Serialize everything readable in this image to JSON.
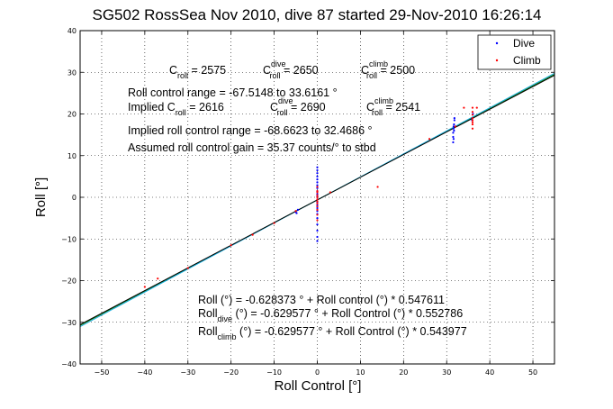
{
  "chart_data": {
    "type": "scatter",
    "title": "SG502 RossSea Nov 2010, dive 87 started 29-Nov-2010 16:26:14",
    "xlabel": "Roll Control [°]",
    "ylabel": "Roll [°]",
    "xlim": [
      -55,
      55
    ],
    "ylim": [
      -40,
      40
    ],
    "xticks": [
      -50,
      -40,
      -30,
      -20,
      -10,
      0,
      10,
      20,
      30,
      40,
      50
    ],
    "yticks": [
      -40,
      -30,
      -20,
      -10,
      0,
      10,
      20,
      30,
      40
    ],
    "grid": true,
    "legend_position": "top-right",
    "legend": [
      "Dive",
      "Climb"
    ],
    "colors": {
      "dive": "#0000ff",
      "climb": "#ff0000",
      "fit_all": "#0a7d0a",
      "fit_dive": "#1aaee0",
      "fit_climb": "#000000"
    },
    "series": [
      {
        "name": "Dive",
        "x": [
          0,
          0,
          0,
          0,
          0,
          0,
          0,
          0,
          0,
          0,
          0,
          0,
          0,
          0,
          0,
          0,
          0,
          0,
          0,
          0,
          0,
          0,
          31.5,
          31.6,
          31.7,
          31.8,
          31.6,
          31.5,
          31.7,
          31.6,
          31.5,
          31.8,
          36,
          35.9,
          36.1,
          -5,
          -4.5,
          -4.8
        ],
        "y": [
          7.2,
          6.5,
          5.8,
          5.0,
          4.3,
          3.6,
          2.9,
          2.2,
          1.5,
          0.8,
          0.2,
          -0.5,
          -1.2,
          -1.9,
          -2.6,
          -3.3,
          -4.0,
          -5.0,
          -6.5,
          -8.0,
          -9.5,
          -10.5,
          15.5,
          16.5,
          17.5,
          18.5,
          14,
          13.2,
          16,
          17,
          14.5,
          19,
          19,
          18.5,
          20,
          -3.5,
          -3,
          -3.8
        ]
      },
      {
        "name": "Climb",
        "x": [
          0,
          0,
          0,
          0,
          0,
          0,
          0,
          0,
          0,
          0,
          0,
          0,
          36,
          36,
          36,
          36,
          36,
          36,
          36,
          36,
          34,
          37,
          -40,
          -37,
          -30,
          -20,
          -10,
          -5,
          3,
          14,
          26,
          32,
          -15
        ],
        "y": [
          2.5,
          1.5,
          0.5,
          0,
          -0.5,
          -1,
          -1.5,
          -2.2,
          -3,
          -4.2,
          -5.5,
          1.2,
          16.5,
          17.5,
          18,
          18.5,
          19,
          19.8,
          20.5,
          21.5,
          21.5,
          21.5,
          -21.5,
          -19.5,
          -17,
          -11.5,
          -6.2,
          -3.3,
          1.2,
          2.5,
          14,
          17,
          -9
        ]
      }
    ],
    "annotations": {
      "c_row": {
        "c": "C",
        "roll": "roll",
        "c_val": " = 2575",
        "dive_c": "C",
        "dive_sup": "dive",
        "dive_sub": "roll",
        "dive_val": " = 2650",
        "climb_c": "C",
        "climb_sup": "climb",
        "climb_sub": "roll",
        "climb_val": " = 2500"
      },
      "range_line": "Roll control range = -67.5148 to 33.6161 °",
      "implied_row": {
        "implied": "Implied C",
        "roll": "roll",
        "implied_val": " = 2616",
        "dive_c": "C",
        "dive_sup": "dive",
        "dive_sub": "roll",
        "dive_val": " = 2690",
        "climb_c": "C",
        "climb_sup": "climb",
        "climb_sub": "roll",
        "climb_val": " = 2541"
      },
      "implied_range": "Implied roll control range = -68.6623 to 32.4686 °",
      "gain": "Assumed roll control gain = 35.37 counts/° to stbd",
      "fit_all": "Roll (°) = -0.628373 ° + Roll control (°) * 0.547611",
      "fit_dive_pre": "Roll",
      "fit_dive_sub": "dive",
      "fit_dive_post": " (°) = -0.629577 ° + Roll Control (°) * 0.552786",
      "fit_climb_pre": "Roll",
      "fit_climb_sub": "climb",
      "fit_climb_post": " (°) = -0.629577 ° + Roll Control (°) * 0.543977"
    },
    "fits": [
      {
        "id": "fit_all",
        "intercept": -0.628373,
        "slope": 0.547611
      },
      {
        "id": "fit_dive",
        "intercept": -0.629577,
        "slope": 0.552786
      },
      {
        "id": "fit_climb",
        "intercept": -0.629577,
        "slope": 0.543977
      }
    ]
  }
}
